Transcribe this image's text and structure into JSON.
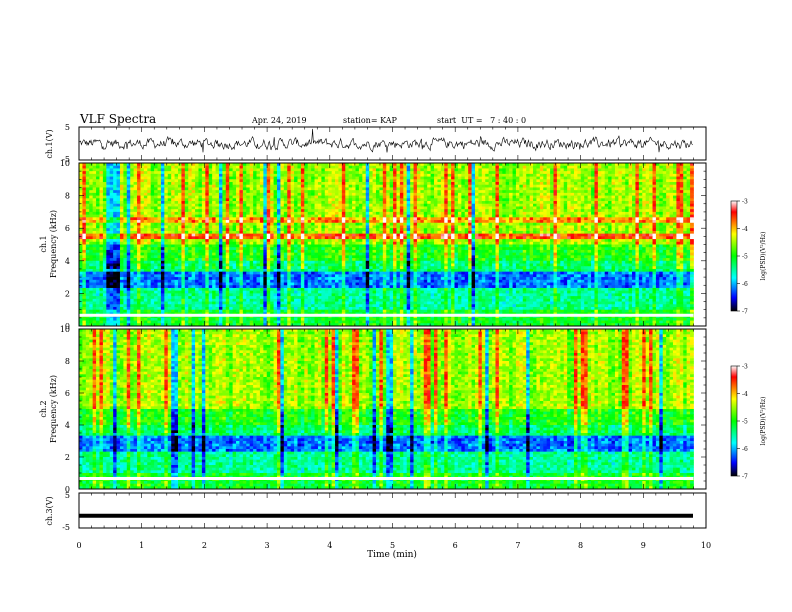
{
  "header": {
    "title": "VLF Spectra",
    "date": "Apr. 24, 2019",
    "station": "station= KAP",
    "start": "start  UT =   7 : 40 : 0"
  },
  "chart_data": [
    {
      "type": "line",
      "panel": "ch1-waveform",
      "ylabel": "ch.1(V)",
      "ylim": [
        -5,
        5
      ],
      "yticks": [
        "5",
        "-5"
      ],
      "xlim": [
        0,
        10
      ],
      "description_values": "noisy waveform roughly between -2 and 2 V"
    },
    {
      "type": "heatmap",
      "panel": "ch1-spectrogram",
      "ylabel": "ch.1\nFrequency (kHz)",
      "ylabel_lines": [
        "ch.1",
        "Frequency (kHz)"
      ],
      "ylim": [
        0,
        10
      ],
      "yticks": [
        "0",
        "2",
        "4",
        "6",
        "8",
        "10"
      ],
      "xlim": [
        0,
        9.8
      ],
      "colorbar": {
        "label": "log(PSD)(V²/Hz)",
        "range": [
          -7,
          -3
        ],
        "ticks": [
          "-3",
          "-4",
          "-5",
          "-6",
          "-7"
        ]
      }
    },
    {
      "type": "heatmap",
      "panel": "ch2-spectrogram",
      "ylabel_lines": [
        "ch.2",
        "Frequency (kHz)"
      ],
      "ylim": [
        0,
        10
      ],
      "yticks": [
        "0",
        "2",
        "4",
        "6",
        "8",
        "10"
      ],
      "xlim": [
        0,
        9.8
      ],
      "colorbar": {
        "label": "log(PSD)(V²/Hz)",
        "range": [
          -7,
          -3
        ],
        "ticks": [
          "-3",
          "-4",
          "-5",
          "-6",
          "-7"
        ]
      }
    },
    {
      "type": "line",
      "panel": "ch3-waveform",
      "ylabel": "ch.3(V)",
      "ylim": [
        -5,
        5
      ],
      "yticks": [
        "5",
        "-5"
      ],
      "level": -1.5,
      "xlabel": "Time (min)",
      "xlim": [
        0,
        10
      ],
      "xticks": [
        "0",
        "1",
        "2",
        "3",
        "4",
        "5",
        "6",
        "7",
        "8",
        "9",
        "10"
      ]
    }
  ]
}
